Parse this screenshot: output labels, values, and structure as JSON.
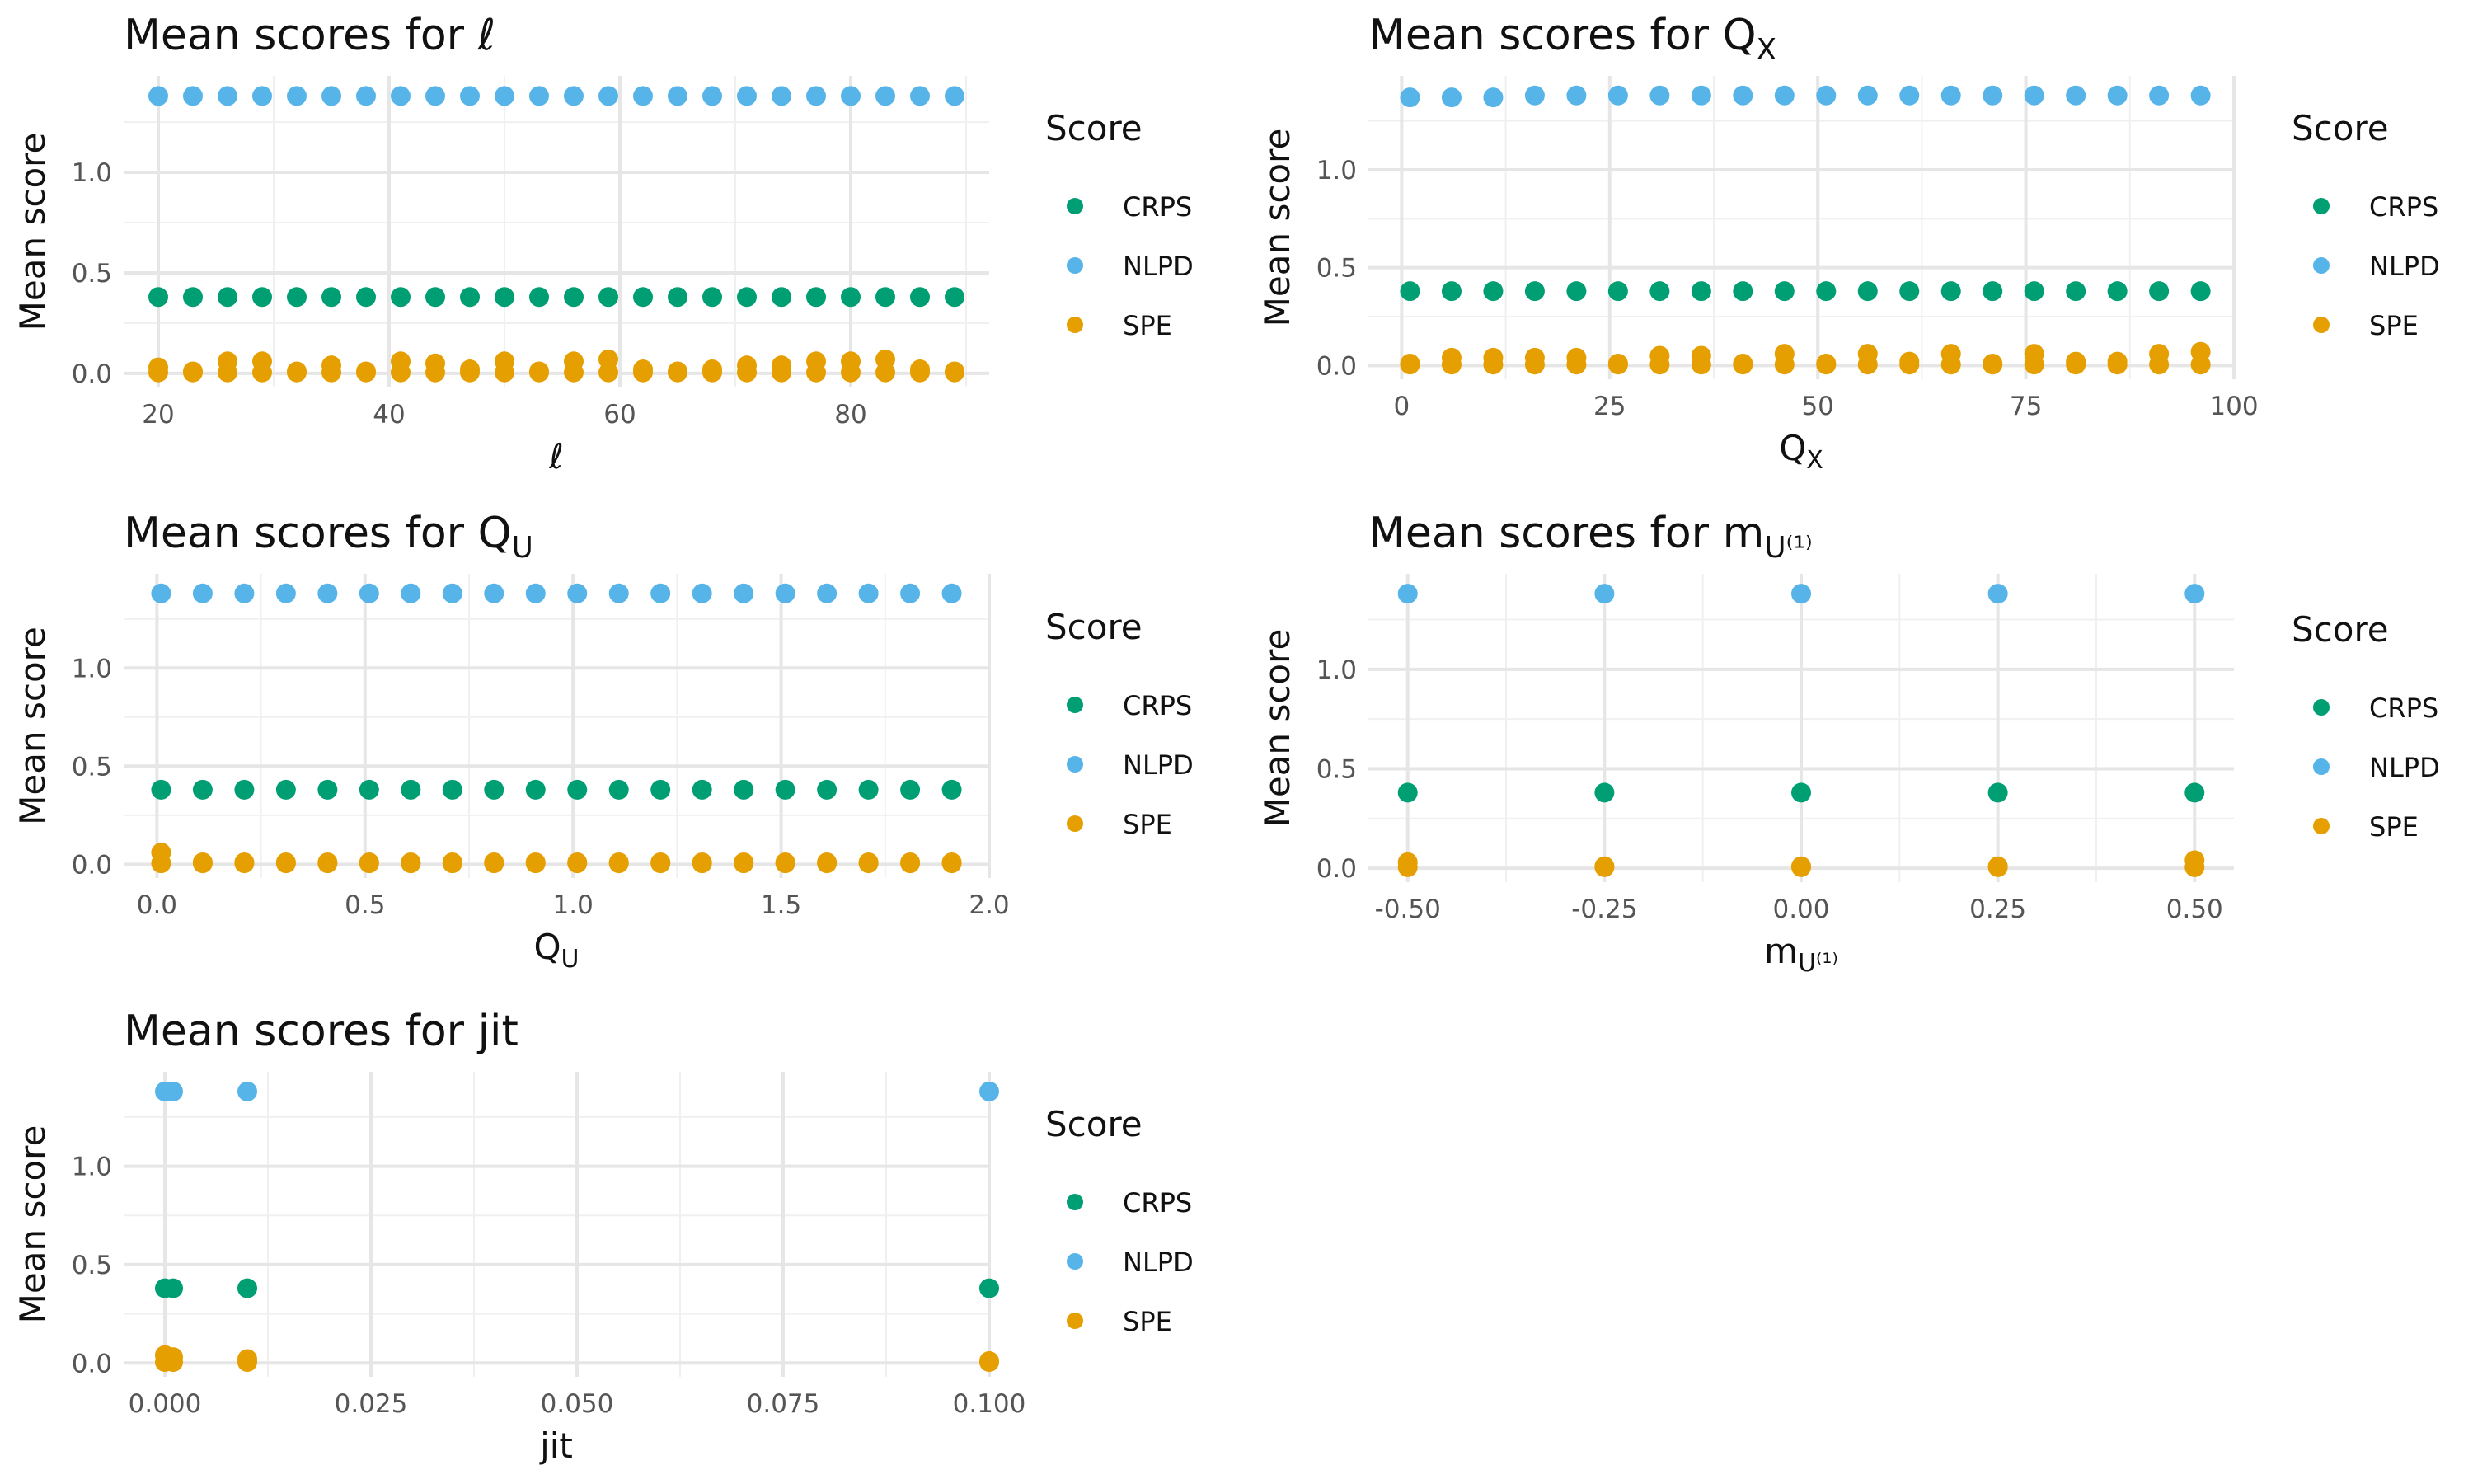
{
  "legend": {
    "title": "Score",
    "entries": [
      {
        "label": "CRPS",
        "color": "#009E73"
      },
      {
        "label": "NLPD",
        "color": "#56B4E9"
      },
      {
        "label": "SPE",
        "color": "#E69F00"
      }
    ]
  },
  "chart_data": [
    {
      "type": "scatter",
      "title_prefix": "Mean scores for ",
      "title_var": "ℓ",
      "title_sub": "",
      "xlabel_var": "ℓ",
      "xlabel_sub": "",
      "ylabel": "Mean score",
      "xlim": [
        17,
        92
      ],
      "ylim": [
        -0.07,
        1.48
      ],
      "xticks": [
        20,
        40,
        60,
        80
      ],
      "xtick_labels": [
        "20",
        "40",
        "60",
        "80"
      ],
      "yticks": [
        0.0,
        0.5,
        1.0
      ],
      "ytick_labels": [
        "0.0",
        "0.5",
        "1.0"
      ],
      "grid": true,
      "legend_position": "right",
      "x": [
        20,
        23,
        26,
        29,
        32,
        35,
        38,
        41,
        44,
        47,
        50,
        53,
        56,
        59,
        62,
        65,
        68,
        71,
        74,
        77,
        80,
        83,
        86,
        89
      ],
      "series": [
        {
          "name": "CRPS",
          "values": [
            0.38,
            0.38,
            0.38,
            0.38,
            0.38,
            0.38,
            0.38,
            0.38,
            0.38,
            0.38,
            0.38,
            0.38,
            0.38,
            0.38,
            0.38,
            0.38,
            0.38,
            0.38,
            0.38,
            0.38,
            0.38,
            0.38,
            0.38,
            0.38
          ]
        },
        {
          "name": "NLPD",
          "values": [
            1.38,
            1.38,
            1.38,
            1.38,
            1.38,
            1.38,
            1.38,
            1.38,
            1.38,
            1.38,
            1.38,
            1.38,
            1.38,
            1.38,
            1.38,
            1.38,
            1.38,
            1.38,
            1.38,
            1.38,
            1.38,
            1.38,
            1.38,
            1.38
          ]
        },
        {
          "name": "SPE",
          "values": [
            0.03,
            0.01,
            0.06,
            0.06,
            0.01,
            0.04,
            0.01,
            0.06,
            0.05,
            0.02,
            0.06,
            0.01,
            0.06,
            0.07,
            0.02,
            0.01,
            0.02,
            0.04,
            0.04,
            0.06,
            0.06,
            0.07,
            0.02,
            0.01
          ]
        }
      ]
    },
    {
      "type": "scatter",
      "title_prefix": "Mean scores for ",
      "title_var": "Q",
      "title_sub": "X",
      "xlabel_var": "Q",
      "xlabel_sub": "X",
      "ylabel": "Mean score",
      "xlim": [
        -4,
        100
      ],
      "ylim": [
        -0.07,
        1.48
      ],
      "xticks": [
        0,
        25,
        50,
        75,
        100
      ],
      "xtick_labels": [
        "0",
        "25",
        "50",
        "75",
        "100"
      ],
      "yticks": [
        0.0,
        0.5,
        1.0
      ],
      "ytick_labels": [
        "0.0",
        "0.5",
        "1.0"
      ],
      "grid": true,
      "legend_position": "right",
      "x": [
        1,
        6,
        11,
        16,
        21,
        26,
        31,
        36,
        41,
        46,
        51,
        56,
        61,
        66,
        71,
        76,
        81,
        86,
        91,
        96
      ],
      "series": [
        {
          "name": "CRPS",
          "values": [
            0.38,
            0.38,
            0.38,
            0.38,
            0.38,
            0.38,
            0.38,
            0.38,
            0.38,
            0.38,
            0.38,
            0.38,
            0.38,
            0.38,
            0.38,
            0.38,
            0.38,
            0.38,
            0.38,
            0.38
          ]
        },
        {
          "name": "NLPD",
          "values": [
            1.37,
            1.37,
            1.37,
            1.38,
            1.38,
            1.38,
            1.38,
            1.38,
            1.38,
            1.38,
            1.38,
            1.38,
            1.38,
            1.38,
            1.38,
            1.38,
            1.38,
            1.38,
            1.38,
            1.38
          ]
        },
        {
          "name": "SPE",
          "values": [
            0.01,
            0.04,
            0.04,
            0.04,
            0.04,
            0.01,
            0.05,
            0.05,
            0.01,
            0.06,
            0.01,
            0.06,
            0.02,
            0.06,
            0.01,
            0.06,
            0.02,
            0.02,
            0.06,
            0.07
          ]
        }
      ]
    },
    {
      "type": "scatter",
      "title_prefix": "Mean scores for ",
      "title_var": "Q",
      "title_sub": "U",
      "xlabel_var": "Q",
      "xlabel_sub": "U",
      "ylabel": "Mean score",
      "xlim": [
        -0.08,
        2.0
      ],
      "ylim": [
        -0.07,
        1.48
      ],
      "xticks": [
        0.0,
        0.5,
        1.0,
        1.5,
        2.0
      ],
      "xtick_labels": [
        "0.0",
        "0.5",
        "1.0",
        "1.5",
        "2.0"
      ],
      "yticks": [
        0.0,
        0.5,
        1.0
      ],
      "ytick_labels": [
        "0.0",
        "0.5",
        "1.0"
      ],
      "grid": true,
      "legend_position": "right",
      "x": [
        0.01,
        0.11,
        0.21,
        0.31,
        0.41,
        0.51,
        0.61,
        0.71,
        0.81,
        0.91,
        1.01,
        1.11,
        1.21,
        1.31,
        1.41,
        1.51,
        1.61,
        1.71,
        1.81,
        1.91
      ],
      "series": [
        {
          "name": "CRPS",
          "values": [
            0.38,
            0.38,
            0.38,
            0.38,
            0.38,
            0.38,
            0.38,
            0.38,
            0.38,
            0.38,
            0.38,
            0.38,
            0.38,
            0.38,
            0.38,
            0.38,
            0.38,
            0.38,
            0.38,
            0.38
          ]
        },
        {
          "name": "NLPD",
          "values": [
            1.38,
            1.38,
            1.38,
            1.38,
            1.38,
            1.38,
            1.38,
            1.38,
            1.38,
            1.38,
            1.38,
            1.38,
            1.38,
            1.38,
            1.38,
            1.38,
            1.38,
            1.38,
            1.38,
            1.38
          ]
        },
        {
          "name": "SPE",
          "values": [
            0.06,
            0.01,
            0.01,
            0.01,
            0.01,
            0.01,
            0.01,
            0.01,
            0.01,
            0.01,
            0.01,
            0.01,
            0.01,
            0.01,
            0.01,
            0.01,
            0.01,
            0.01,
            0.01,
            0.01
          ]
        }
      ]
    },
    {
      "type": "scatter",
      "title_prefix": "Mean scores for ",
      "title_var": "m",
      "title_sub": "U⁽¹⁾",
      "xlabel_var": "m",
      "xlabel_sub": "U⁽¹⁾",
      "ylabel": "Mean score",
      "xlim": [
        -0.55,
        0.55
      ],
      "ylim": [
        -0.07,
        1.48
      ],
      "xticks": [
        -0.5,
        -0.25,
        0.0,
        0.25,
        0.5
      ],
      "xtick_labels": [
        "-0.50",
        "-0.25",
        "0.00",
        "0.25",
        "0.50"
      ],
      "yticks": [
        0.0,
        0.5,
        1.0
      ],
      "ytick_labels": [
        "0.0",
        "0.5",
        "1.0"
      ],
      "grid": true,
      "legend_position": "right",
      "x": [
        -0.5,
        -0.25,
        0.0,
        0.25,
        0.5
      ],
      "series": [
        {
          "name": "CRPS",
          "values": [
            0.38,
            0.38,
            0.38,
            0.38,
            0.38
          ]
        },
        {
          "name": "NLPD",
          "values": [
            1.38,
            1.38,
            1.38,
            1.38,
            1.38
          ]
        },
        {
          "name": "SPE",
          "values": [
            0.03,
            0.01,
            0.01,
            0.01,
            0.04
          ]
        }
      ]
    },
    {
      "type": "scatter",
      "title_prefix": "Mean scores for ",
      "title_var": "jit",
      "title_sub": "",
      "xlabel_var": "jit",
      "xlabel_sub": "",
      "ylabel": "Mean score",
      "xlim": [
        -0.005,
        0.1
      ],
      "ylim": [
        -0.07,
        1.48
      ],
      "xticks": [
        0.0,
        0.025,
        0.05,
        0.075,
        0.1
      ],
      "xtick_labels": [
        "0.000",
        "0.025",
        "0.050",
        "0.075",
        "0.100"
      ],
      "yticks": [
        0.0,
        0.5,
        1.0
      ],
      "ytick_labels": [
        "0.0",
        "0.5",
        "1.0"
      ],
      "grid": true,
      "legend_position": "right",
      "x": [
        0.0,
        0.001,
        0.01,
        0.1
      ],
      "series": [
        {
          "name": "CRPS",
          "values": [
            0.38,
            0.38,
            0.38,
            0.38
          ]
        },
        {
          "name": "NLPD",
          "values": [
            1.38,
            1.38,
            1.38,
            1.38
          ]
        },
        {
          "name": "SPE",
          "values": [
            0.04,
            0.03,
            0.02,
            0.01
          ]
        }
      ]
    }
  ]
}
